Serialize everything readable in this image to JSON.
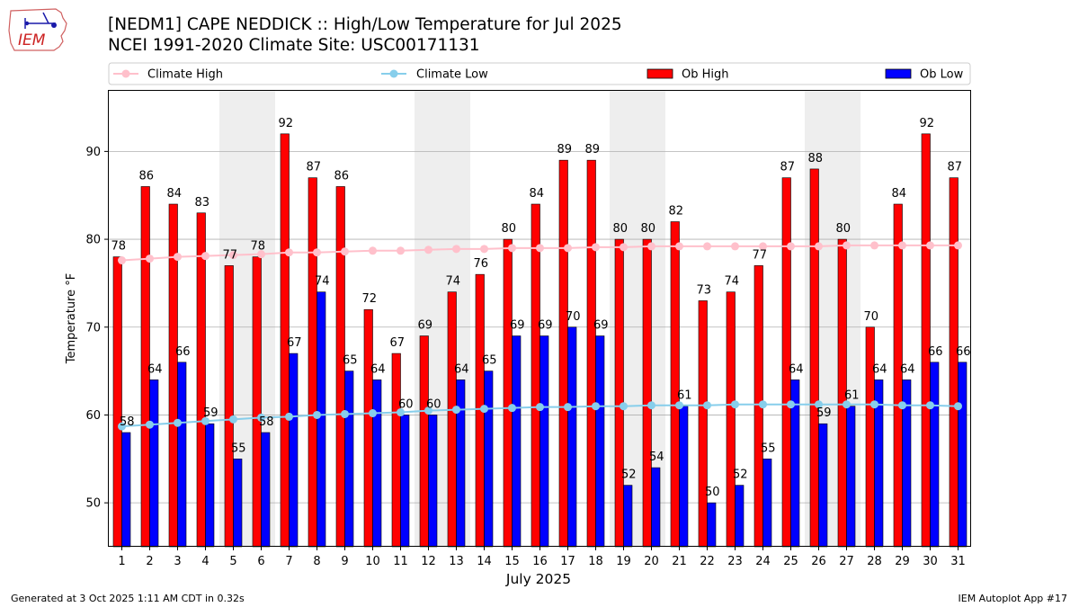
{
  "logo": {
    "text": "IEM"
  },
  "header": {
    "title_line1": "[NEDM1] CAPE NEDDICK :: High/Low Temperature for Jul 2025",
    "title_line2": "NCEI 1991-2020 Climate Site: USC00171131"
  },
  "footer": {
    "generated": "Generated at 3 Oct 2025 1:11 AM CDT in 0.32s",
    "app": "IEM Autoplot App #17"
  },
  "colors": {
    "ob_high": "#ff0000",
    "ob_low": "#0000ff",
    "climate_high": "#ffc0cb",
    "climate_low": "#87ceeb",
    "weekend_band": "#eeeeee",
    "grid": "#b0b0b0"
  },
  "chart_data": {
    "type": "bar",
    "title": "[NEDM1] CAPE NEDDICK :: High/Low Temperature for Jul 2025",
    "xlabel": "July 2025",
    "ylabel": "Temperature °F",
    "ylim": [
      45,
      97
    ],
    "yticks": [
      50,
      60,
      70,
      80,
      90
    ],
    "grid": true,
    "legend_position": "top",
    "categories": [
      "1",
      "2",
      "3",
      "4",
      "5",
      "6",
      "7",
      "8",
      "9",
      "10",
      "11",
      "12",
      "13",
      "14",
      "15",
      "16",
      "17",
      "18",
      "19",
      "20",
      "21",
      "22",
      "23",
      "24",
      "25",
      "26",
      "27",
      "28",
      "29",
      "30",
      "31"
    ],
    "shaded_days": [
      5,
      6,
      12,
      13,
      19,
      20,
      26,
      27
    ],
    "series": [
      {
        "name": "Ob High",
        "kind": "bar",
        "values": [
          78,
          86,
          84,
          83,
          77,
          78,
          92,
          87,
          86,
          72,
          67,
          69,
          74,
          76,
          80,
          84,
          89,
          89,
          80,
          80,
          82,
          73,
          74,
          77,
          87,
          88,
          80,
          70,
          84,
          92,
          87
        ]
      },
      {
        "name": "Ob Low",
        "kind": "bar",
        "values": [
          58,
          64,
          66,
          59,
          55,
          58,
          67,
          74,
          65,
          64,
          60,
          60,
          64,
          65,
          69,
          69,
          70,
          69,
          52,
          54,
          61,
          50,
          52,
          55,
          64,
          59,
          61,
          64,
          64,
          66,
          66
        ]
      },
      {
        "name": "Climate High",
        "kind": "line",
        "values": [
          77.6,
          77.8,
          78.0,
          78.1,
          78.2,
          78.3,
          78.5,
          78.5,
          78.6,
          78.7,
          78.7,
          78.8,
          78.9,
          78.9,
          79.0,
          79.0,
          79.0,
          79.1,
          79.1,
          79.2,
          79.2,
          79.2,
          79.2,
          79.2,
          79.2,
          79.2,
          79.3,
          79.3,
          79.3,
          79.3,
          79.3
        ]
      },
      {
        "name": "Climate Low",
        "kind": "line",
        "values": [
          58.7,
          58.9,
          59.1,
          59.3,
          59.5,
          59.7,
          59.8,
          60.0,
          60.1,
          60.2,
          60.3,
          60.5,
          60.6,
          60.7,
          60.8,
          60.9,
          60.9,
          61.0,
          61.0,
          61.1,
          61.1,
          61.1,
          61.2,
          61.2,
          61.2,
          61.2,
          61.2,
          61.2,
          61.1,
          61.1,
          61.0
        ]
      }
    ]
  }
}
